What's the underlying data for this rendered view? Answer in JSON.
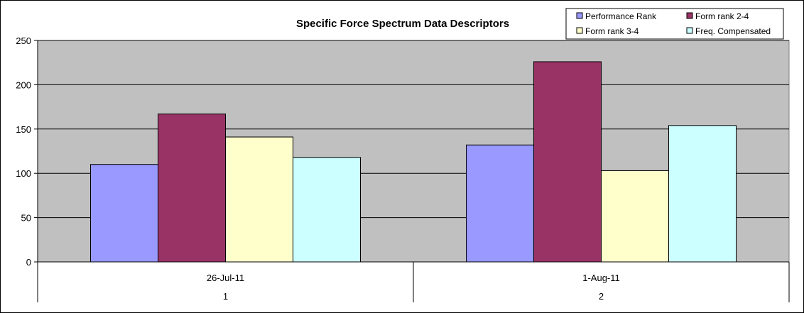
{
  "chart_data": {
    "type": "bar",
    "title": "Specific Force Spectrum Data Descriptors",
    "categories": [
      {
        "date": "26-Jul-11",
        "index": "1"
      },
      {
        "date": "1-Aug-11",
        "index": "2"
      }
    ],
    "series": [
      {
        "name": "Performance Rank",
        "values": [
          110,
          132
        ],
        "color": "#9999ff"
      },
      {
        "name": "Form rank 2-4",
        "values": [
          167,
          226
        ],
        "color": "#993366"
      },
      {
        "name": "Form rank 3-4",
        "values": [
          141,
          103
        ],
        "color": "#ffffcc"
      },
      {
        "name": "Freq. Compensated",
        "values": [
          118,
          154
        ],
        "color": "#ccffff"
      }
    ],
    "y_ticks": [
      "0",
      "50",
      "100",
      "150",
      "200",
      "250"
    ],
    "ylim": [
      0,
      250
    ],
    "grid": true,
    "plot_background": "#c0c0c0",
    "legend_position": "top-right"
  }
}
